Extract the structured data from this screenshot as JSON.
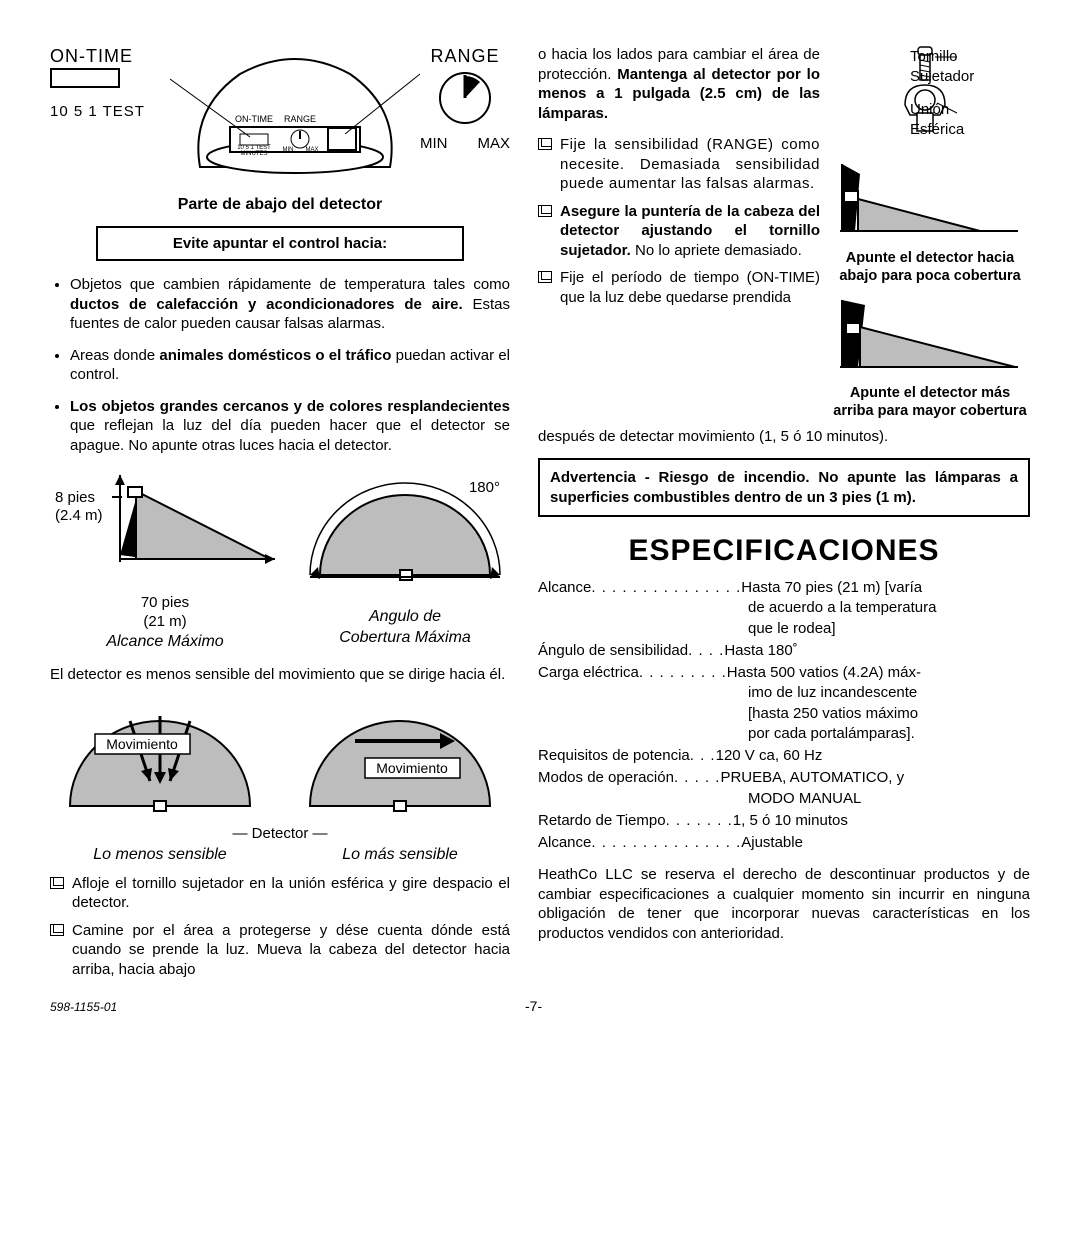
{
  "left": {
    "top": {
      "on_time": "ON-TIME",
      "range": "RANGE",
      "dial_left": "10 5 1 TEST",
      "dial_min": "MIN",
      "dial_max": "MAX",
      "inner_on_time": "ON-TIME",
      "inner_range": "RANGE",
      "inner_scale": "10 5  1 TEST",
      "inner_minutes": "MINUTES",
      "inner_min": "MIN",
      "inner_max": "MAX"
    },
    "caption": "Parte de abajo del detector",
    "avoid_box": "Evite apuntar el control hacia:",
    "bullets": [
      "Objetos que cambien rápidamente de temperatura tales como <b>ductos de calefacción y acondicionadores de aire.</b> Estas fuentes de calor pueden causar falsas alarmas.",
      "Areas donde <b>animales domésticos o el tráfico</b> puedan activar el control.",
      "<b>Los objetos grandes cercanos y de colores resplandecientes</b> que reflejan la luz del día pueden hacer que el detector se apague. No apunte otras luces hacia el detector."
    ],
    "range_fig": {
      "h": "8 pies",
      "h_m": "(2.4 m)",
      "d": "70 pies",
      "d_m": "(21 m)",
      "angle": "180°",
      "cap1": "Alcance Máximo",
      "cap2": "Angulo de",
      "cap2b": "Cobertura Máxima"
    },
    "sens_para": "El detector es menos sensible del movimiento que se dirige hacia él.",
    "mov": "Movimiento",
    "detector_label": "Detector",
    "sens_less": "Lo menos sensible",
    "sens_more": "Lo más sensible",
    "check1": "Afloje el tornillo sujetador en la unión esférica y gire despacio el detector.",
    "check2": "Camine por el área a protegerse y dése cuenta dónde está cuando se prende la luz. Mueva la cabeza del detector hacia arriba, hacia abajo"
  },
  "right": {
    "para1": "o hacia los lados para cambiar el área de protección. <b>Mantenga al detector por lo menos a 1 pulgada (2.5 cm) de las lámparas.</b>",
    "chk1": "Fije la sensibilidad (RANGE) como necesite. Demasiada sensibilidad puede aumentar las falsas alarmas.",
    "chk2": "<b>Asegure la puntería de la cabeza del detector ajustando el tornillo sujetador.</b> No lo apriete demasiado.",
    "chk3a": "Fije el período de tiempo (ON-TIME) que la luz debe quedarse prendida",
    "chk3b": "después de detectar movimiento (1, 5 ó 10 minutos).",
    "screw": {
      "t": "Tornillo",
      "s": "Sujetador",
      "u": "Unión",
      "e": "Esférica"
    },
    "aim_down": "Apunte el detector hacia abajo para poca cobertura",
    "aim_up": "Apunte el detector más arriba para mayor cobertura",
    "warn": "Advertencia - Riesgo de incendio. No apunte las lámparas a superficies combustibles dentro de un 3 pies (1 m).",
    "spec_title": "ESPECIFICACIONES",
    "specs": [
      {
        "label": "Alcance",
        "dots": " . . . . . . . . . . . . . . .",
        "val": "Hasta 70 pies (21 m) [varía",
        "cont": [
          "de acuerdo a la temperatura",
          "que le rodea]"
        ]
      },
      {
        "label": "Ángulo de sensibilidad",
        "dots": ". . . .",
        "val": "Hasta 180˚",
        "cont": []
      },
      {
        "label": "Carga eléctrica",
        "dots": " . . . . . . . . .",
        "val": "Hasta 500 vatios (4.2A) máx-",
        "cont": [
          "imo de luz incandescente",
          "[hasta 250 vatios máximo",
          "por cada portalámparas]."
        ]
      },
      {
        "label": "Requisitos de potencia",
        "dots": " . . .",
        "val": "120 V ca, 60 Hz",
        "cont": []
      },
      {
        "label": "Modos de operación",
        "dots": " . . . . .",
        "val": "PRUEBA, AUTOMATICO, y",
        "cont": [
          "MODO MANUAL"
        ]
      },
      {
        "label": "Retardo de Tiempo",
        "dots": " . . . . . . .",
        "val": "1, 5 ó 10 minutos",
        "cont": []
      },
      {
        "label": "Alcance",
        "dots": " . . . . . . . . . . . . . . .",
        "val": "Ajustable",
        "cont": []
      }
    ],
    "disclaimer": "HeathCo LLC se reserva el derecho de descontinuar productos y de cambiar especificaciones a cualquier momento sin incurrir en ninguna obligación de tener que incorporar nuevas características en los productos vendidos con anterioridad."
  },
  "footer": {
    "doc": "598-1155-01",
    "page": "-7-"
  },
  "colors": {
    "fill": "#bdbdbd",
    "line": "#000"
  }
}
